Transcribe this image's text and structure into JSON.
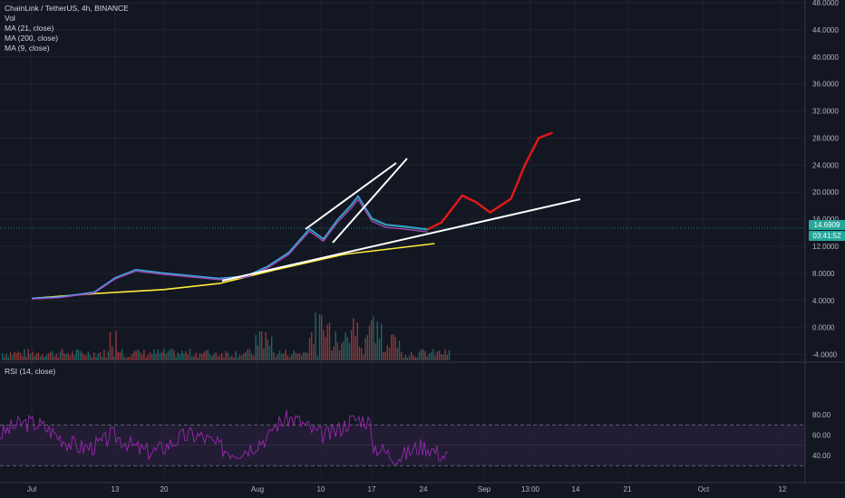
{
  "chart_data": {
    "type": "line",
    "title": "ChainLink / TetherUS, 4h, BINANCE",
    "indicators": [
      "Vol",
      "MA (21, close)",
      "MA (200, close)",
      "MA (9, close)"
    ],
    "rsi_label": "RSI (14, close)",
    "price_axis": {
      "ticks": [
        "48.0000",
        "44.0000",
        "40.0000",
        "36.0000",
        "32.0000",
        "28.0000",
        "24.0000",
        "20.0000",
        "16.0000",
        "12.0000",
        "8.0000",
        "4.0000",
        "0.0000",
        "-4.0000"
      ],
      "ylim": [
        -5,
        48
      ]
    },
    "rsi_axis": {
      "ticks": [
        "80.00",
        "60.00",
        "40.00"
      ],
      "upper_band": 70,
      "lower_band": 30
    },
    "x_ticks": [
      "Jul",
      "13",
      "20",
      "Aug",
      "10",
      "17",
      "24",
      "Sep",
      "13:00",
      "14",
      "21",
      "Oct",
      "12"
    ],
    "current_price": {
      "value": "14.6909",
      "countdown": "03:41:52",
      "color": "#26a69a"
    },
    "price_series": {
      "x": [
        "Jul 1",
        "Jul 5",
        "Jul 10",
        "Jul 13",
        "Jul 16",
        "Jul 20",
        "Jul 24",
        "Jul 28",
        "Aug 1",
        "Aug 4",
        "Aug 7",
        "Aug 10",
        "Aug 12",
        "Aug 14",
        "Aug 16",
        "Aug 17",
        "Aug 19",
        "Aug 21",
        "Aug 24",
        "Aug 27"
      ],
      "values": [
        4.3,
        4.5,
        5.2,
        7.3,
        8.5,
        8.0,
        7.6,
        7.2,
        7.6,
        9.0,
        11.0,
        14.5,
        13.0,
        15.8,
        18.0,
        19.3,
        16.0,
        15.1,
        14.8,
        14.4
      ]
    },
    "ma200_series": {
      "x": [
        "Jul 1",
        "Jul 10",
        "Jul 20",
        "Jul 28",
        "Aug 5",
        "Aug 15",
        "Aug 28"
      ],
      "values": [
        4.3,
        5.0,
        5.6,
        6.5,
        8.5,
        10.8,
        12.4
      ]
    },
    "projection": {
      "x": [
        "Aug 27",
        "Aug 29",
        "Sep 1",
        "Sep 3",
        "Sep 5",
        "Sep 8",
        "Sep 10",
        "Sep 12",
        "Sep 14"
      ],
      "values": [
        14.5,
        15.5,
        19.5,
        18.5,
        17.0,
        19.0,
        24.0,
        28.0,
        28.8
      ]
    },
    "colors": {
      "background": "#131722",
      "price": "#26a69a",
      "ma21": "#ab47bc",
      "ma9": "#42a5f5",
      "ma200": "#ffeb3b",
      "projection": "#e01818",
      "trendline": "#ffffff",
      "rsi": "#9c27b0",
      "rsi_band": "#2a1f3d"
    }
  }
}
